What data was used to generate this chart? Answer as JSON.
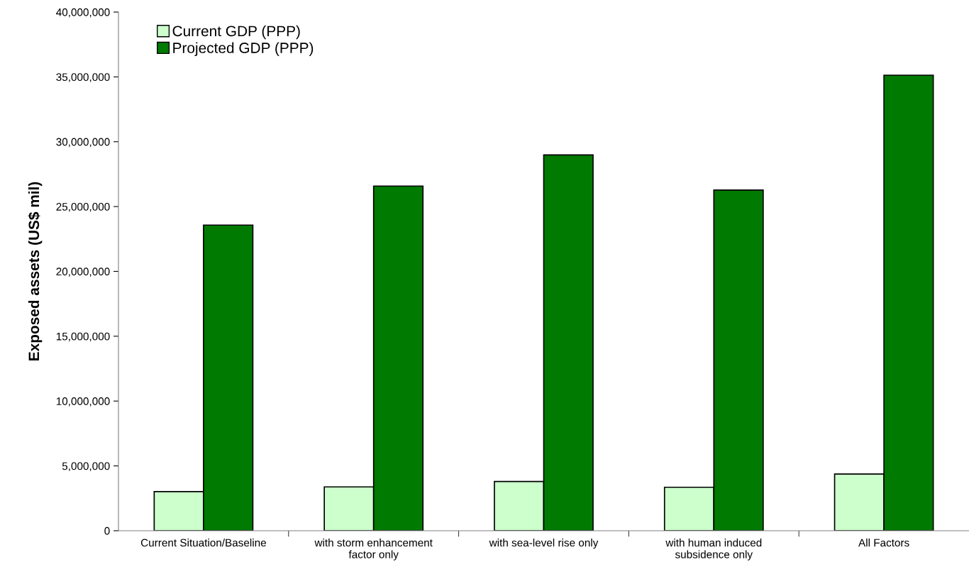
{
  "chart_data": {
    "type": "bar",
    "ylabel": "Exposed assets (US$ mil)",
    "categories": [
      "Current Situation/Baseline",
      "with storm enhancement\nfactor only",
      "with sea-level rise only",
      "with human induced\nsubsidence only",
      "All Factors"
    ],
    "series": [
      {
        "name": "Current GDP (PPP)",
        "color": "#ccffcc",
        "values": [
          3020000,
          3380000,
          3800000,
          3350000,
          4370000
        ]
      },
      {
        "name": "Projected GDP (PPP)",
        "color": "#007a00",
        "values": [
          23570000,
          26580000,
          28980000,
          26270000,
          35130000
        ]
      }
    ],
    "ylim": [
      0,
      40000000
    ],
    "yticks": [
      {
        "value": 0,
        "label": "0"
      },
      {
        "value": 5000000,
        "label": "5,000,000"
      },
      {
        "value": 10000000,
        "label": "10,000,000"
      },
      {
        "value": 15000000,
        "label": "15,000,000"
      },
      {
        "value": 20000000,
        "label": "20,000,000"
      },
      {
        "value": 25000000,
        "label": "25,000,000"
      },
      {
        "value": 30000000,
        "label": "30,000,000"
      },
      {
        "value": 35000000,
        "label": "35,000,000"
      },
      {
        "value": 40000000,
        "label": "40,000,000"
      }
    ],
    "grid": false,
    "legend": "top left"
  }
}
